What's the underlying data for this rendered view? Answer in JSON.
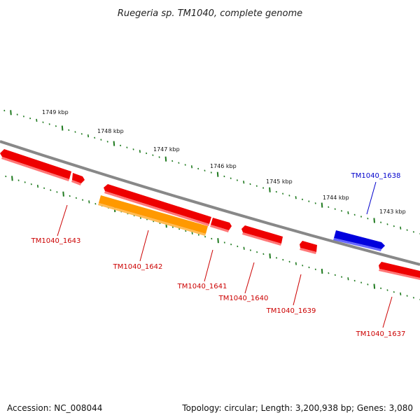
{
  "title": "Ruegeria sp. TM1040, complete genome",
  "footer": {
    "accession": "Accession: NC_008044",
    "topology": "Topology: circular; Length: 3,200,938 bp; Genes: 3,080"
  },
  "colors": {
    "backbone": "#888888",
    "ticks": "#1f7a1f",
    "gene_default": "#ee0000",
    "gene_highlight": "#ff9900",
    "gene_other": "#0000dd",
    "label_default": "#cc0000",
    "label_other": "#0000cc"
  },
  "scale_labels": [
    "1749 kbp",
    "1748 kbp",
    "1747 kbp",
    "1746 kbp",
    "1745 kbp",
    "1744 kbp",
    "1743 kbp"
  ],
  "genes": [
    {
      "label": "TM1040_1643",
      "color": "#ee0000",
      "label_color": "#cc0000"
    },
    {
      "label": "TM1040_1642",
      "color": "#ff9900",
      "label_color": "#cc0000"
    },
    {
      "label": "TM1040_1641",
      "color": "#ee0000",
      "label_color": "#cc0000"
    },
    {
      "label": "TM1040_1640",
      "color": "#ee0000",
      "label_color": "#cc0000"
    },
    {
      "label": "TM1040_1639",
      "color": "#ee0000",
      "label_color": "#cc0000"
    },
    {
      "label": "TM1040_1638",
      "color": "#0000dd",
      "label_color": "#0000cc"
    },
    {
      "label": "TM1040_1637",
      "color": "#ee0000",
      "label_color": "#cc0000"
    }
  ]
}
